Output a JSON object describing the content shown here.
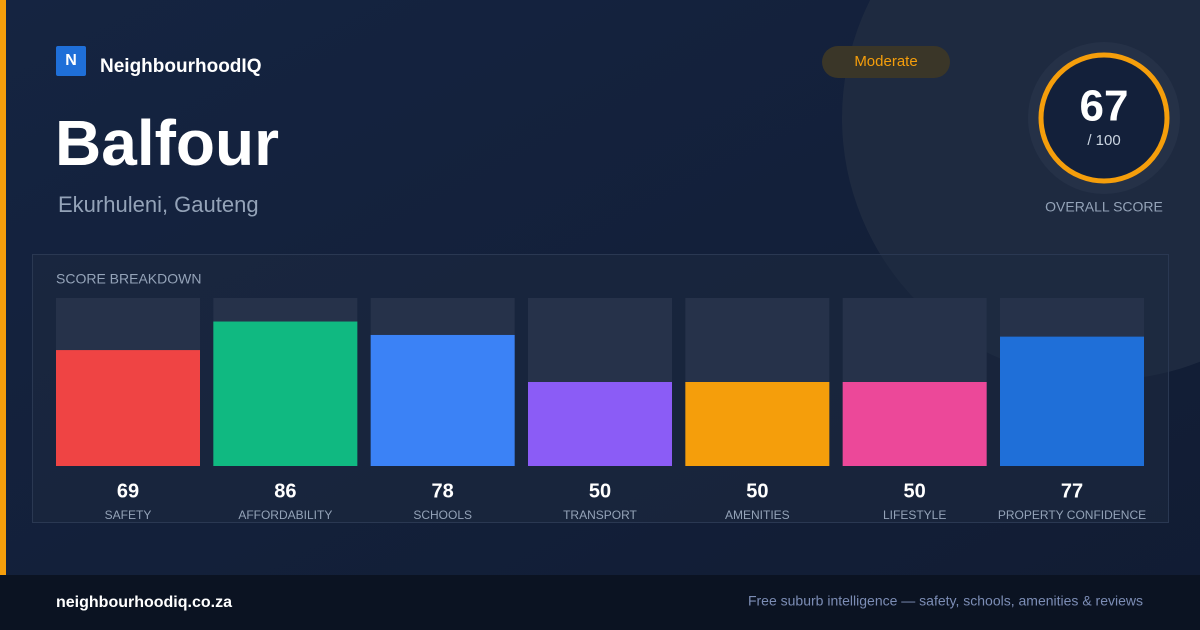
{
  "brand": {
    "logo": "N",
    "name": "NeighbourhoodIQ"
  },
  "header": {
    "title": "Balfour",
    "subtitle": "Ekurhuleni, Gauteng",
    "badge": "Moderate"
  },
  "score": {
    "value": 67,
    "max_label": "/ 100",
    "label": "OVERALL SCORE"
  },
  "chart_data": {
    "type": "bar",
    "title": "SCORE BREAKDOWN",
    "categories": [
      "SAFETY",
      "AFFORDABILITY",
      "SCHOOLS",
      "TRANSPORT",
      "AMENITIES",
      "LIFESTYLE",
      "PROPERTY CONFIDENCE"
    ],
    "values": [
      69,
      86,
      78,
      50,
      50,
      50,
      77
    ],
    "colors": [
      "#ef4444",
      "#10b981",
      "#3b82f6",
      "#8b5cf6",
      "#f59e0b",
      "#ec4899",
      "#1f6fd8"
    ],
    "ylim": [
      0,
      100
    ]
  },
  "footer": {
    "site": "neighbourhoodiq.co.za",
    "tagline": "Free suburb intelligence — safety, schools, amenities & reviews"
  }
}
